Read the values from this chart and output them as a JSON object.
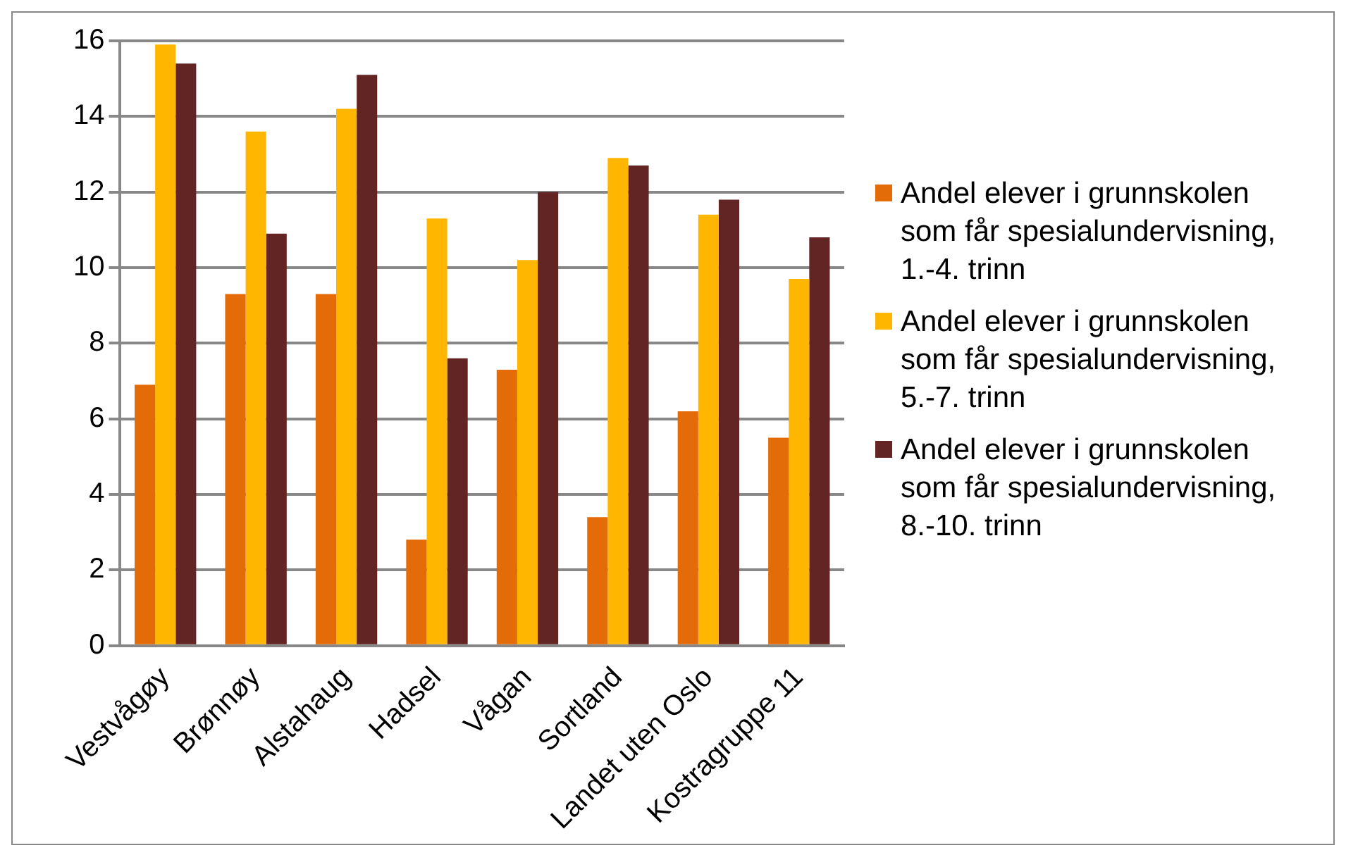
{
  "chart_data": {
    "type": "bar",
    "categories": [
      "Vestvågøy",
      "Brønnøy",
      "Alstahaug",
      "Hadsel",
      "Vågan",
      "Sortland",
      "Landet uten Oslo",
      "Kostragruppe 11"
    ],
    "series": [
      {
        "name": "Andel elever i grunnskolen som får spesialundervisning, 1.-4. trinn",
        "color": "#e36c09",
        "values": [
          6.9,
          9.3,
          9.3,
          2.8,
          7.3,
          3.4,
          6.2,
          5.5
        ]
      },
      {
        "name": "Andel elever i grunnskolen som får spesialundervisning, 5.-7. trinn",
        "color": "#ffb600",
        "values": [
          15.9,
          13.6,
          14.2,
          11.3,
          10.2,
          12.9,
          11.4,
          9.7
        ]
      },
      {
        "name": "Andel elever i grunnskolen som får spesialundervisning, 8.-10. trinn",
        "color": "#632523",
        "values": [
          15.4,
          10.9,
          15.1,
          7.6,
          12.0,
          12.7,
          11.8,
          10.8
        ]
      }
    ],
    "ylim": [
      0,
      16
    ],
    "yticks": [
      0,
      2,
      4,
      6,
      8,
      10,
      12,
      14,
      16
    ],
    "grid": "y",
    "legend": "right"
  }
}
